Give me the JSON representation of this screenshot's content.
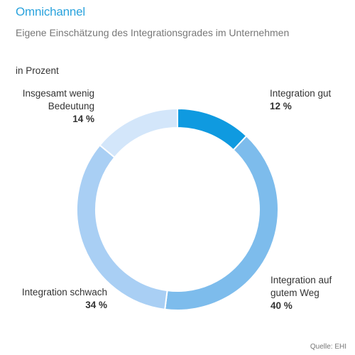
{
  "header": {
    "title": "Omnichannel",
    "subtitle": "Eigene Einschätzung des Integrationsgrades im Unternehmen",
    "unit_note": "in Prozent"
  },
  "footer": {
    "source": "Quelle: EHI"
  },
  "chart_data": {
    "type": "pie",
    "variant": "donut",
    "title": "Omnichannel",
    "subtitle": "Eigene Einschätzung des Integrationsgrades im Unternehmen",
    "unit": "in Prozent",
    "categories": [
      "Integration gut",
      "Integration auf gutem Weg",
      "Integration schwach",
      "Insgesamt wenig Bedeutung"
    ],
    "values": [
      12,
      40,
      34,
      14
    ],
    "value_labels": [
      "12 %",
      "40 %",
      "34 %",
      "14 %"
    ],
    "colors": [
      "#0f9ae0",
      "#7dbcec",
      "#a9cff4",
      "#d3e6fa"
    ],
    "legend": "none",
    "grid": false
  }
}
